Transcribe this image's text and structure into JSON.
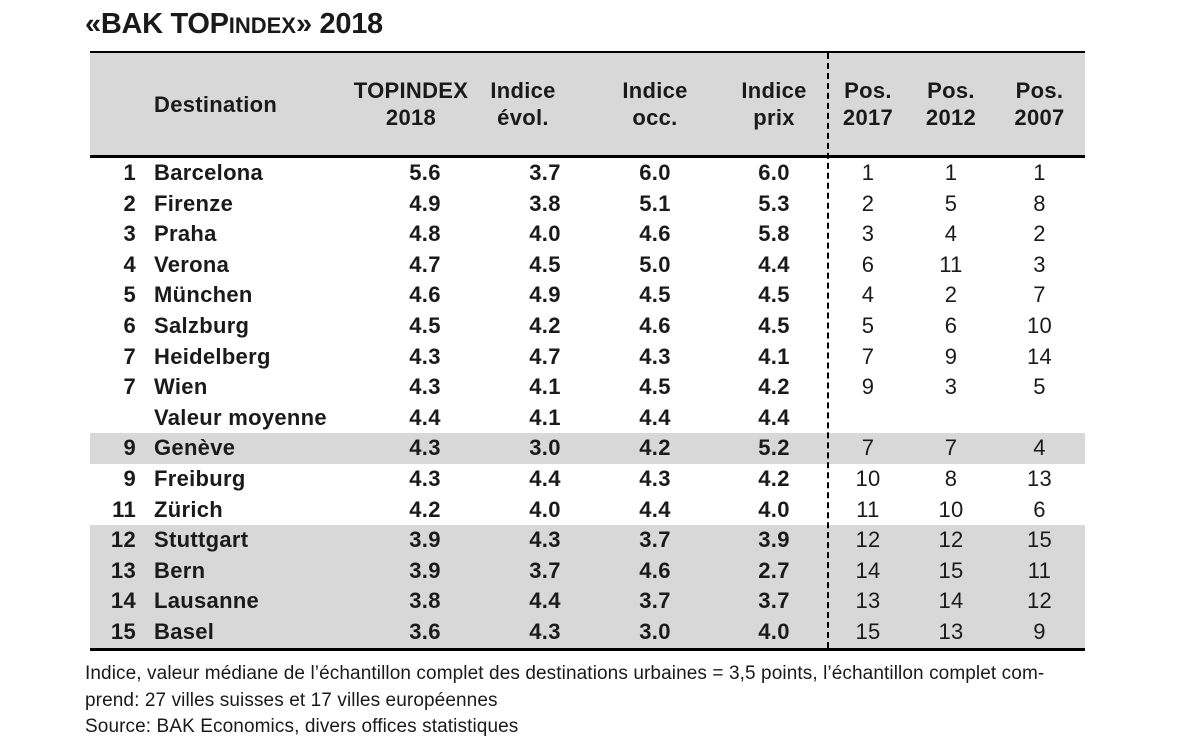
{
  "title": {
    "prefix": "«BAK TOP",
    "smallcaps": "INDEX",
    "suffix": "» 2018"
  },
  "colors": {
    "header_background": "#d8d8d8",
    "row_highlight": "#d8d8d8"
  },
  "chart_data": {
    "type": "table",
    "title": "«BAK TOPINDEX» 2018",
    "columns": [
      {
        "key": "rank",
        "label_line1": "",
        "label_line2": ""
      },
      {
        "key": "destination",
        "label_line1": "Destination",
        "label_line2": ""
      },
      {
        "key": "topindex",
        "label_line1": "TOPINDEX",
        "label_line2": "2018"
      },
      {
        "key": "evol",
        "label_line1": "Indice",
        "label_line2": "évol."
      },
      {
        "key": "occ",
        "label_line1": "Indice",
        "label_line2": "occ."
      },
      {
        "key": "prix",
        "label_line1": "Indice",
        "label_line2": "prix"
      },
      {
        "key": "pos2017",
        "label_line1": "Pos.",
        "label_line2": "2017"
      },
      {
        "key": "pos2012",
        "label_line1": "Pos.",
        "label_line2": "2012"
      },
      {
        "key": "pos2007",
        "label_line1": "Pos.",
        "label_line2": "2007"
      }
    ],
    "rows": [
      {
        "rank": "1",
        "destination": "Barcelona",
        "topindex": "5.6",
        "evol": "3.7",
        "occ": "6.0",
        "prix": "6.0",
        "pos2017": "1",
        "pos2012": "1",
        "pos2007": "1",
        "highlight": false
      },
      {
        "rank": "2",
        "destination": "Firenze",
        "topindex": "4.9",
        "evol": "3.8",
        "occ": "5.1",
        "prix": "5.3",
        "pos2017": "2",
        "pos2012": "5",
        "pos2007": "8",
        "highlight": false
      },
      {
        "rank": "3",
        "destination": "Praha",
        "topindex": "4.8",
        "evol": "4.0",
        "occ": "4.6",
        "prix": "5.8",
        "pos2017": "3",
        "pos2012": "4",
        "pos2007": "2",
        "highlight": false
      },
      {
        "rank": "4",
        "destination": "Verona",
        "topindex": "4.7",
        "evol": "4.5",
        "occ": "5.0",
        "prix": "4.4",
        "pos2017": "6",
        "pos2012": "11",
        "pos2007": "3",
        "highlight": false
      },
      {
        "rank": "5",
        "destination": "München",
        "topindex": "4.6",
        "evol": "4.9",
        "occ": "4.5",
        "prix": "4.5",
        "pos2017": "4",
        "pos2012": "2",
        "pos2007": "7",
        "highlight": false
      },
      {
        "rank": "6",
        "destination": "Salzburg",
        "topindex": "4.5",
        "evol": "4.2",
        "occ": "4.6",
        "prix": "4.5",
        "pos2017": "5",
        "pos2012": "6",
        "pos2007": "10",
        "highlight": false
      },
      {
        "rank": "7",
        "destination": "Heidelberg",
        "topindex": "4.3",
        "evol": "4.7",
        "occ": "4.3",
        "prix": "4.1",
        "pos2017": "7",
        "pos2012": "9",
        "pos2007": "14",
        "highlight": false
      },
      {
        "rank": "7",
        "destination": "Wien",
        "topindex": "4.3",
        "evol": "4.1",
        "occ": "4.5",
        "prix": "4.2",
        "pos2017": "9",
        "pos2012": "3",
        "pos2007": "5",
        "highlight": false
      },
      {
        "rank": "",
        "destination": "Valeur moyenne",
        "topindex": "4.4",
        "evol": "4.1",
        "occ": "4.4",
        "prix": "4.4",
        "pos2017": "",
        "pos2012": "",
        "pos2007": "",
        "highlight": false
      },
      {
        "rank": "9",
        "destination": "Genève",
        "topindex": "4.3",
        "evol": "3.0",
        "occ": "4.2",
        "prix": "5.2",
        "pos2017": "7",
        "pos2012": "7",
        "pos2007": "4",
        "highlight": true
      },
      {
        "rank": "9",
        "destination": "Freiburg",
        "topindex": "4.3",
        "evol": "4.4",
        "occ": "4.3",
        "prix": "4.2",
        "pos2017": "10",
        "pos2012": "8",
        "pos2007": "13",
        "highlight": false
      },
      {
        "rank": "11",
        "destination": "Zürich",
        "topindex": "4.2",
        "evol": "4.0",
        "occ": "4.4",
        "prix": "4.0",
        "pos2017": "11",
        "pos2012": "10",
        "pos2007": "6",
        "highlight": false
      },
      {
        "rank": "12",
        "destination": "Stuttgart",
        "topindex": "3.9",
        "evol": "4.3",
        "occ": "3.7",
        "prix": "3.9",
        "pos2017": "12",
        "pos2012": "12",
        "pos2007": "15",
        "highlight": true
      },
      {
        "rank": "13",
        "destination": "Bern",
        "topindex": "3.9",
        "evol": "3.7",
        "occ": "4.6",
        "prix": "2.7",
        "pos2017": "14",
        "pos2012": "15",
        "pos2007": "11",
        "highlight": true
      },
      {
        "rank": "14",
        "destination": "Lausanne",
        "topindex": "3.8",
        "evol": "4.4",
        "occ": "3.7",
        "prix": "3.7",
        "pos2017": "13",
        "pos2012": "14",
        "pos2007": "12",
        "highlight": true
      },
      {
        "rank": "15",
        "destination": "Basel",
        "topindex": "3.6",
        "evol": "4.3",
        "occ": "3.0",
        "prix": "4.0",
        "pos2017": "15",
        "pos2012": "13",
        "pos2007": "9",
        "highlight": true
      }
    ],
    "footnotes": [
      "Indice, valeur médiane de l’échantillon complet des destinations urbaines = 3,5 points, l’échantillon complet com-",
      "prend: 27 villes suisses et 17 villes européennes"
    ],
    "source": "Source: BAK Economics, divers offices statistiques"
  }
}
